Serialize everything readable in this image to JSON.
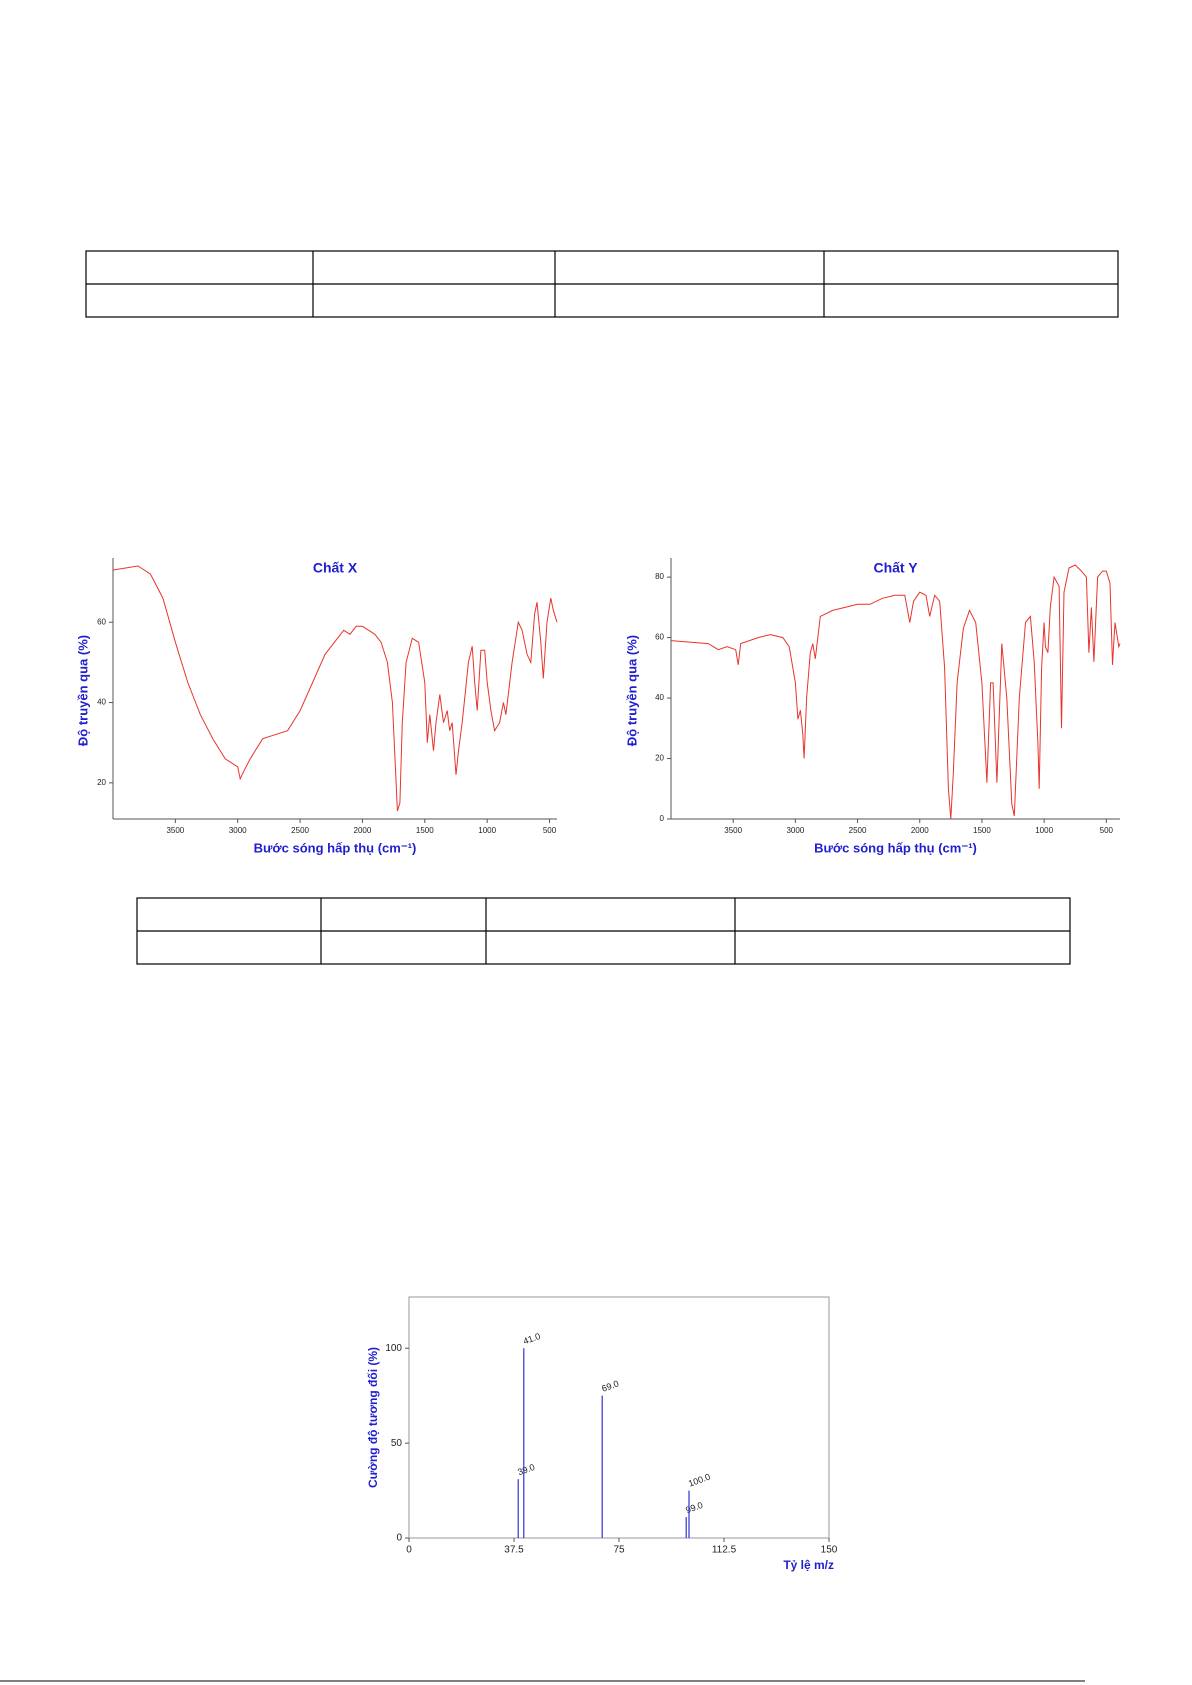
{
  "chart_data": [
    {
      "type": "line",
      "title": "Chất X",
      "x_label": "Bước sóng hấp thụ (cm⁻¹)",
      "y_label": "Độ truyền qua (%)",
      "color": "#e8342c",
      "x": [
        4000,
        3800,
        3700,
        3600,
        3500,
        3400,
        3300,
        3200,
        3100,
        3000,
        2980,
        2950,
        2900,
        2800,
        2700,
        2600,
        2500,
        2400,
        2300,
        2200,
        2150,
        2100,
        2050,
        2000,
        1950,
        1900,
        1850,
        1800,
        1760,
        1720,
        1700,
        1680,
        1650,
        1600,
        1550,
        1500,
        1480,
        1460,
        1430,
        1410,
        1380,
        1350,
        1320,
        1300,
        1280,
        1250,
        1230,
        1200,
        1150,
        1120,
        1100,
        1080,
        1050,
        1020,
        1000,
        970,
        940,
        900,
        870,
        850,
        800,
        750,
        720,
        680,
        650,
        620,
        600,
        570,
        550,
        520,
        490,
        470,
        440
      ],
      "values": [
        73,
        74,
        72,
        66,
        55,
        45,
        37,
        31,
        26,
        24,
        21,
        23,
        26,
        31,
        32,
        33,
        38,
        45,
        52,
        56,
        58,
        57,
        59,
        59,
        58,
        57,
        55,
        50,
        40,
        13,
        15,
        35,
        50,
        56,
        55,
        45,
        30,
        37,
        28,
        35,
        42,
        35,
        38,
        33,
        35,
        22,
        28,
        35,
        50,
        54,
        45,
        38,
        53,
        53,
        45,
        38,
        33,
        35,
        40,
        37,
        50,
        60,
        58,
        52,
        50,
        62,
        65,
        55,
        46,
        60,
        66,
        63,
        60
      ],
      "xlim": [
        4000,
        440
      ],
      "xticks": [
        3500,
        3000,
        2500,
        2000,
        1500,
        1000,
        500
      ],
      "ylim": [
        11,
        75
      ],
      "yticks": [
        20,
        40,
        60
      ]
    },
    {
      "type": "line",
      "title": "Chất Y",
      "x_label": "Bước sóng hấp thụ (cm⁻¹)",
      "y_label": "Độ truyền qua (%)",
      "color": "#e8342c",
      "x": [
        4000,
        3700,
        3620,
        3550,
        3480,
        3460,
        3440,
        3300,
        3200,
        3100,
        3050,
        3000,
        2980,
        2960,
        2940,
        2930,
        2910,
        2880,
        2860,
        2840,
        2800,
        2700,
        2600,
        2500,
        2400,
        2300,
        2200,
        2120,
        2080,
        2050,
        2000,
        1950,
        1920,
        1880,
        1840,
        1800,
        1770,
        1750,
        1730,
        1700,
        1650,
        1600,
        1550,
        1500,
        1460,
        1430,
        1410,
        1380,
        1340,
        1300,
        1260,
        1240,
        1200,
        1150,
        1110,
        1080,
        1050,
        1040,
        1020,
        1000,
        990,
        970,
        950,
        920,
        880,
        860,
        840,
        800,
        750,
        700,
        660,
        640,
        620,
        600,
        570,
        530,
        500,
        470,
        450,
        430,
        400,
        390
      ],
      "values": [
        59,
        58,
        56,
        57,
        56,
        51,
        58,
        60,
        61,
        60,
        57,
        45,
        33,
        36,
        28,
        20,
        40,
        55,
        58,
        53,
        67,
        69,
        70,
        71,
        71,
        73,
        74,
        74,
        65,
        72,
        75,
        74,
        67,
        74,
        72,
        50,
        10,
        0,
        15,
        45,
        63,
        69,
        65,
        45,
        12,
        45,
        45,
        12,
        58,
        40,
        5,
        1,
        40,
        65,
        67,
        52,
        25,
        10,
        50,
        65,
        57,
        55,
        70,
        80,
        77,
        30,
        75,
        83,
        84,
        82,
        80,
        55,
        70,
        52,
        80,
        82,
        82,
        78,
        51,
        65,
        57,
        58
      ],
      "xlim": [
        4000,
        390
      ],
      "xticks": [
        3500,
        3000,
        2500,
        2000,
        1500,
        1000,
        500
      ],
      "ylim": [
        0,
        85
      ],
      "yticks": [
        0,
        20,
        40,
        60,
        80
      ]
    },
    {
      "type": "bar",
      "x_label": "Tỷ lệ m/z",
      "y_label": "Cường độ tương đối (%)",
      "color": "#3333cc",
      "x": [
        39,
        41,
        69,
        99,
        100
      ],
      "x_labels": [
        "39.0",
        "41.0",
        "69.0",
        "99.0",
        "100.0"
      ],
      "values": [
        31,
        100,
        75,
        11,
        25
      ],
      "xlim": [
        0,
        150
      ],
      "xticks": [
        0,
        37.5,
        75,
        112.5,
        150
      ],
      "ylim": [
        0,
        127
      ],
      "yticks": [
        0,
        50,
        100
      ]
    }
  ]
}
